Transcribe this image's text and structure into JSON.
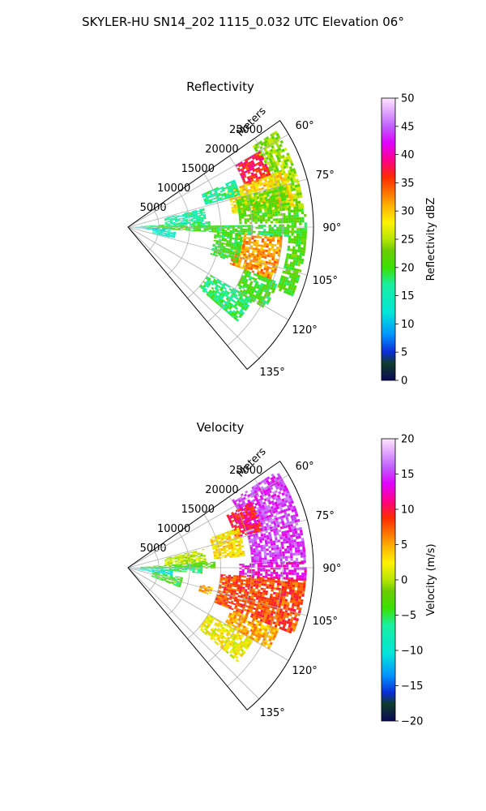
{
  "figure": {
    "suptitle": "SKYLER-HU  SN14_202  1115_0.032 UTC Elevation 06°"
  },
  "chart_data": [
    {
      "type": "heatmap",
      "projection": "polar-sector",
      "title": "Reflectivity",
      "radial_label": "Meters",
      "radial_ticks": [
        5000,
        10000,
        15000,
        20000,
        25000
      ],
      "radial_tick_labels": [
        "5000",
        "10000",
        "15000",
        "20000",
        "25000"
      ],
      "radial_max": 30000,
      "azimuth_range_deg": [
        55,
        140
      ],
      "azimuth_ticks": [
        60,
        75,
        90,
        105,
        120,
        135
      ],
      "azimuth_tick_labels": [
        "60°",
        "75°",
        "90°",
        "105°",
        "120°",
        "135°"
      ],
      "grid": true,
      "colorbar": {
        "label": "Reflectivity dBZ",
        "min": 0,
        "max": 50,
        "ticks": [
          0,
          5,
          10,
          15,
          20,
          25,
          30,
          35,
          40,
          45,
          50
        ],
        "tick_labels": [
          "0",
          "5",
          "10",
          "15",
          "20",
          "25",
          "30",
          "35",
          "40",
          "45",
          "50"
        ],
        "colorscale": [
          [
            0.0,
            "#0b0a57"
          ],
          [
            0.06,
            "#0f3d2b"
          ],
          [
            0.1,
            "#0b2bd6"
          ],
          [
            0.16,
            "#0092ff"
          ],
          [
            0.24,
            "#00e6d8"
          ],
          [
            0.34,
            "#19f0a0"
          ],
          [
            0.4,
            "#3be000"
          ],
          [
            0.46,
            "#6ccc00"
          ],
          [
            0.5,
            "#b6e600"
          ],
          [
            0.56,
            "#fff200"
          ],
          [
            0.62,
            "#ffb000"
          ],
          [
            0.66,
            "#ff7a00"
          ],
          [
            0.72,
            "#ff2a00"
          ],
          [
            0.78,
            "#ff0088"
          ],
          [
            0.84,
            "#e000ff"
          ],
          [
            0.9,
            "#c060ff"
          ],
          [
            1.0,
            "#ffe6ff"
          ]
        ]
      },
      "echo_regions": [
        {
          "az": [
            57,
            84
          ],
          "r": [
            24000,
            28500
          ],
          "value": 24
        },
        {
          "az": [
            84,
            112
          ],
          "r": [
            26000,
            28700
          ],
          "value": 21
        },
        {
          "az": [
            60,
            70
          ],
          "r": [
            20000,
            24500
          ],
          "value": 37
        },
        {
          "az": [
            70,
            82
          ],
          "r": [
            17000,
            27000
          ],
          "value": 29
        },
        {
          "az": [
            75,
            88
          ],
          "r": [
            18000,
            26000
          ],
          "value": 22
        },
        {
          "az": [
            93,
            110
          ],
          "r": [
            17500,
            25000
          ],
          "value": 32
        },
        {
          "az": [
            93,
            108
          ],
          "r": [
            14000,
            18500
          ],
          "value": 20
        },
        {
          "az": [
            110,
            120
          ],
          "r": [
            20000,
            25500
          ],
          "value": 20
        },
        {
          "az": [
            120,
            130
          ],
          "r": [
            15000,
            23000
          ],
          "value": 18
        },
        {
          "az": [
            66,
            74
          ],
          "r": [
            13000,
            18500
          ],
          "value": 17
        },
        {
          "az": [
            76,
            86
          ],
          "r": [
            6000,
            12500
          ],
          "value": 16
        },
        {
          "az": [
            86,
            90
          ],
          "r": [
            2000,
            13000
          ],
          "value": 18
        },
        {
          "az": [
            89,
            93
          ],
          "r": [
            3000,
            26000
          ],
          "value": 20
        },
        {
          "az": [
            92,
            96
          ],
          "r": [
            1000,
            6500
          ],
          "value": 12
        },
        {
          "az": [
            96,
            104
          ],
          "r": [
            4000,
            7500
          ],
          "value": 14
        }
      ]
    },
    {
      "type": "heatmap",
      "projection": "polar-sector",
      "title": "Velocity",
      "radial_label": "Meters",
      "radial_ticks": [
        5000,
        10000,
        15000,
        20000,
        25000
      ],
      "radial_tick_labels": [
        "5000",
        "10000",
        "15000",
        "20000",
        "25000"
      ],
      "radial_max": 30000,
      "azimuth_range_deg": [
        55,
        140
      ],
      "azimuth_ticks": [
        60,
        75,
        90,
        105,
        120,
        135
      ],
      "azimuth_tick_labels": [
        "60°",
        "75°",
        "90°",
        "105°",
        "120°",
        "135°"
      ],
      "grid": true,
      "colorbar": {
        "label": "Velocity (m/s)",
        "min": -20,
        "max": 20,
        "ticks": [
          -20,
          -15,
          -10,
          -5,
          0,
          5,
          10,
          15,
          20
        ],
        "tick_labels": [
          "−20",
          "−15",
          "−10",
          "−5",
          "0",
          "5",
          "10",
          "15",
          "20"
        ],
        "colorscale": [
          [
            0.0,
            "#0b0a57"
          ],
          [
            0.06,
            "#0f3d2b"
          ],
          [
            0.1,
            "#0b2bd6"
          ],
          [
            0.16,
            "#0092ff"
          ],
          [
            0.24,
            "#00e6d8"
          ],
          [
            0.34,
            "#19f0a0"
          ],
          [
            0.4,
            "#3be000"
          ],
          [
            0.46,
            "#6ccc00"
          ],
          [
            0.5,
            "#b6e600"
          ],
          [
            0.56,
            "#fff200"
          ],
          [
            0.62,
            "#ffb000"
          ],
          [
            0.66,
            "#ff7a00"
          ],
          [
            0.72,
            "#ff2a00"
          ],
          [
            0.78,
            "#ff0088"
          ],
          [
            0.84,
            "#e000ff"
          ],
          [
            0.9,
            "#c060ff"
          ],
          [
            1.0,
            "#ffe6ff"
          ]
        ]
      },
      "echo_regions": [
        {
          "az": [
            57,
            88
          ],
          "r": [
            20000,
            28700
          ],
          "value": 15
        },
        {
          "az": [
            62,
            74
          ],
          "r": [
            18000,
            22500
          ],
          "value": 10
        },
        {
          "az": [
            70,
            84
          ],
          "r": [
            14000,
            19000
          ],
          "value": 3
        },
        {
          "az": [
            88,
            94
          ],
          "r": [
            18000,
            28700
          ],
          "value": 13
        },
        {
          "az": [
            94,
            112
          ],
          "r": [
            15000,
            28700
          ],
          "value": 8
        },
        {
          "az": [
            112,
            120
          ],
          "r": [
            18000,
            26000
          ],
          "value": 5
        },
        {
          "az": [
            120,
            130
          ],
          "r": [
            15000,
            23000
          ],
          "value": 2
        },
        {
          "az": [
            76,
            86
          ],
          "r": [
            6000,
            12500
          ],
          "value": 0
        },
        {
          "az": [
            86,
            90
          ],
          "r": [
            2000,
            14000
          ],
          "value": -3
        },
        {
          "az": [
            89,
            94
          ],
          "r": [
            2000,
            12000
          ],
          "value": -6
        },
        {
          "az": [
            94,
            100
          ],
          "r": [
            1000,
            7000
          ],
          "value": -10
        },
        {
          "az": [
            100,
            110
          ],
          "r": [
            4000,
            9000
          ],
          "value": -4
        },
        {
          "az": [
            103,
            108
          ],
          "r": [
            12000,
            14000
          ],
          "value": 5
        }
      ]
    }
  ]
}
